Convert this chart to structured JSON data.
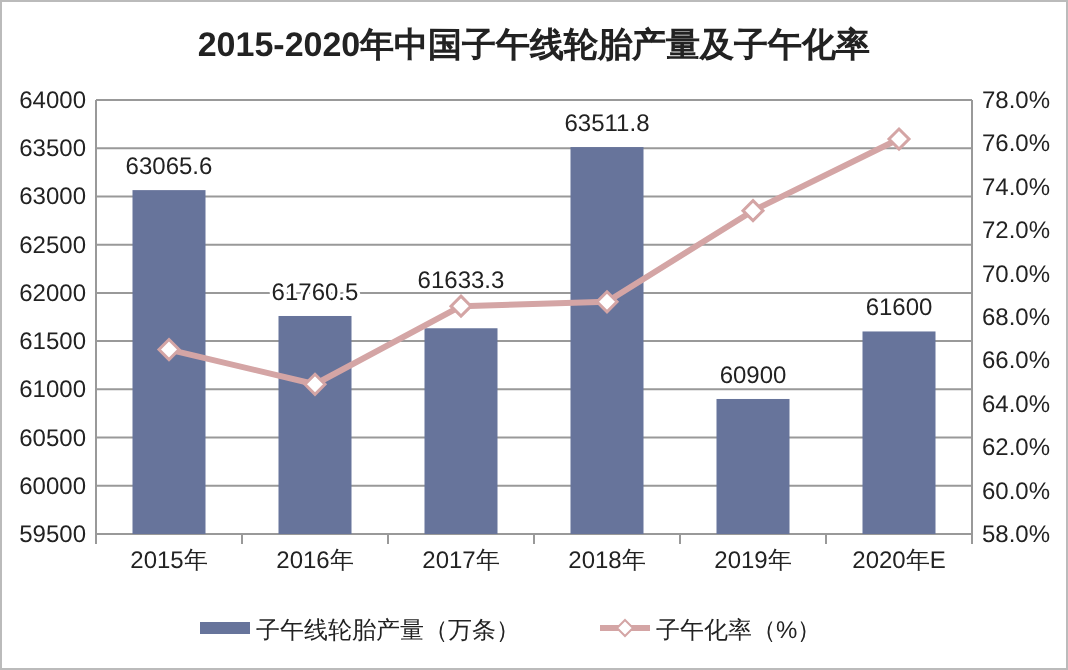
{
  "chart_data": {
    "type": "bar",
    "title": "2015-2020年中国子午线轮胎产量及子午化率",
    "categories": [
      "2015年",
      "2016年",
      "2017年",
      "2018年",
      "2019年",
      "2020年E"
    ],
    "series": [
      {
        "name": "子午线轮胎产量（万条）",
        "color": "#67749b",
        "values": [
          63065.6,
          61760.5,
          61633.3,
          63511.8,
          60900,
          61600
        ],
        "value_labels": [
          "63065.6",
          "61760.5",
          "61633.3",
          "63511.8",
          "60900",
          "61600"
        ]
      },
      {
        "name": "子午化率（%）",
        "type": "line",
        "axis": "y2",
        "color": "#d4a5a5",
        "marker": "diamond",
        "values": [
          66.5,
          64.9,
          68.5,
          68.7,
          72.9,
          76.2
        ]
      }
    ],
    "ylim": [
      59500,
      64000
    ],
    "yticks": [
      59500,
      60000,
      60500,
      61000,
      61500,
      62000,
      62500,
      63000,
      63500,
      64000
    ],
    "y2lim": [
      58,
      78
    ],
    "y2ticks": [
      {
        "value": 58,
        "label": "58.0%"
      },
      {
        "value": 60,
        "label": "60.0%"
      },
      {
        "value": 62,
        "label": "62.0%"
      },
      {
        "value": 64,
        "label": "64.0%"
      },
      {
        "value": 66,
        "label": "66.0%"
      },
      {
        "value": 68,
        "label": "68.0%"
      },
      {
        "value": 70,
        "label": "70.0%"
      },
      {
        "value": 72,
        "label": "72.0%"
      },
      {
        "value": 74,
        "label": "74.0%"
      },
      {
        "value": 76,
        "label": "76.0%"
      },
      {
        "value": 78,
        "label": "78.0%"
      }
    ],
    "grid": "y",
    "legend": "bottom"
  }
}
